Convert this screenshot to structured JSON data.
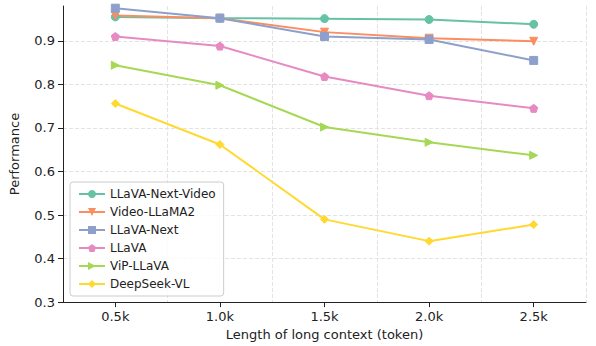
{
  "chart_data": {
    "type": "line",
    "x_label": "Length of long context (token)",
    "y_label": "Performance",
    "categories": [
      "0.5k",
      "1.0k",
      "1.5k",
      "2.0k",
      "2.5k"
    ],
    "ylim": [
      0.3,
      0.98
    ],
    "yticks": [
      0.3,
      0.4,
      0.5,
      0.6,
      0.7,
      0.8,
      0.9
    ],
    "grid": true,
    "legend": "lower left",
    "series": [
      {
        "name": "LLaVA-Next-Video",
        "color": "#66c2a5",
        "marker": "circle",
        "values": [
          0.955,
          0.952,
          0.951,
          0.949,
          0.938
        ]
      },
      {
        "name": "Video-LLaMA2",
        "color": "#fc8d62",
        "marker": "triangle_down",
        "values": [
          0.958,
          0.952,
          0.92,
          0.906,
          0.899
        ]
      },
      {
        "name": "LLaVA-Next",
        "color": "#8da0cb",
        "marker": "square",
        "values": [
          0.975,
          0.952,
          0.91,
          0.903,
          0.855
        ]
      },
      {
        "name": "LLaVA",
        "color": "#e78ac3",
        "marker": "pentagon",
        "values": [
          0.91,
          0.888,
          0.818,
          0.774,
          0.745
        ]
      },
      {
        "name": "ViP-LLaVA",
        "color": "#a6d854",
        "marker": "triangle_right",
        "values": [
          0.844,
          0.798,
          0.702,
          0.667,
          0.637
        ]
      },
      {
        "name": "DeepSeek-VL",
        "color": "#ffd92f",
        "marker": "diamond",
        "values": [
          0.756,
          0.662,
          0.49,
          0.44,
          0.478
        ]
      }
    ]
  }
}
